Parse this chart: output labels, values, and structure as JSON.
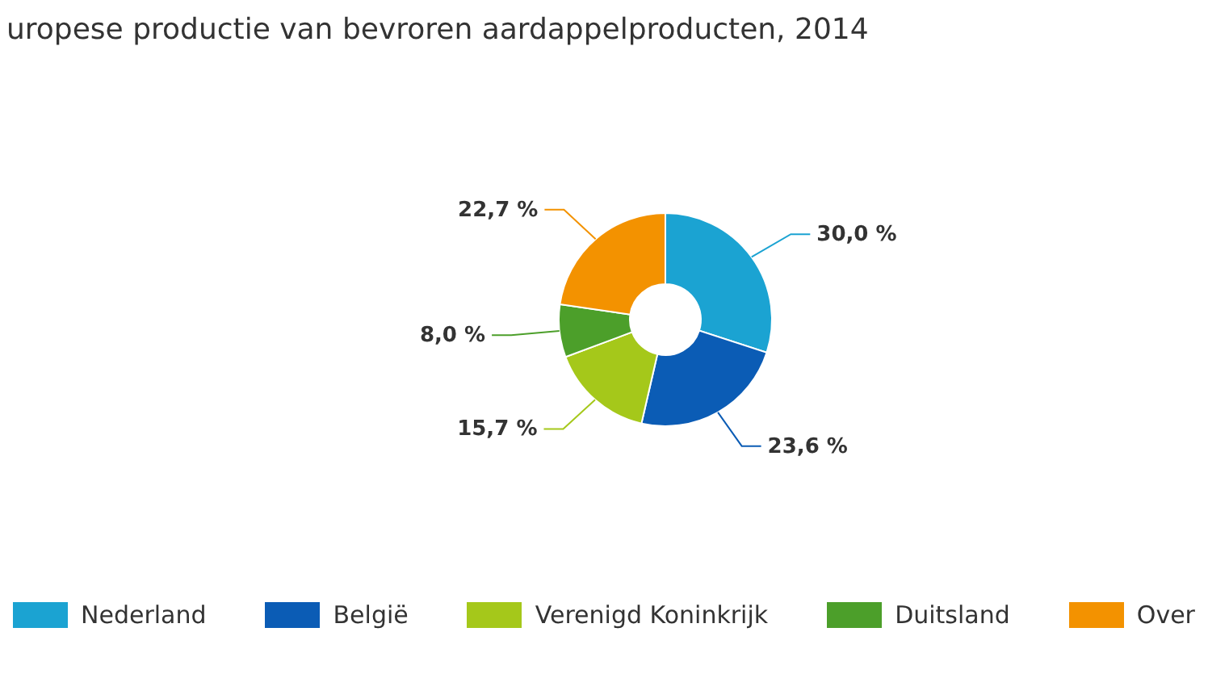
{
  "chart_data": {
    "type": "donut",
    "title": "uropese productie van bevroren aardappelproducten, 2014",
    "categories": [
      "Nederland",
      "België",
      "Verenigd Koninkrijk",
      "Duitsland",
      "Over"
    ],
    "values": [
      30.0,
      23.6,
      15.7,
      8.0,
      22.7
    ],
    "value_labels": [
      "30,0 %",
      "23,6 %",
      "15,7 %",
      "8,0 %",
      "22,7 %"
    ],
    "colors": [
      "#1ba3d2",
      "#0b5cb5",
      "#a5c81a",
      "#4c9f2a",
      "#f39200"
    ],
    "legend": "bottom"
  }
}
